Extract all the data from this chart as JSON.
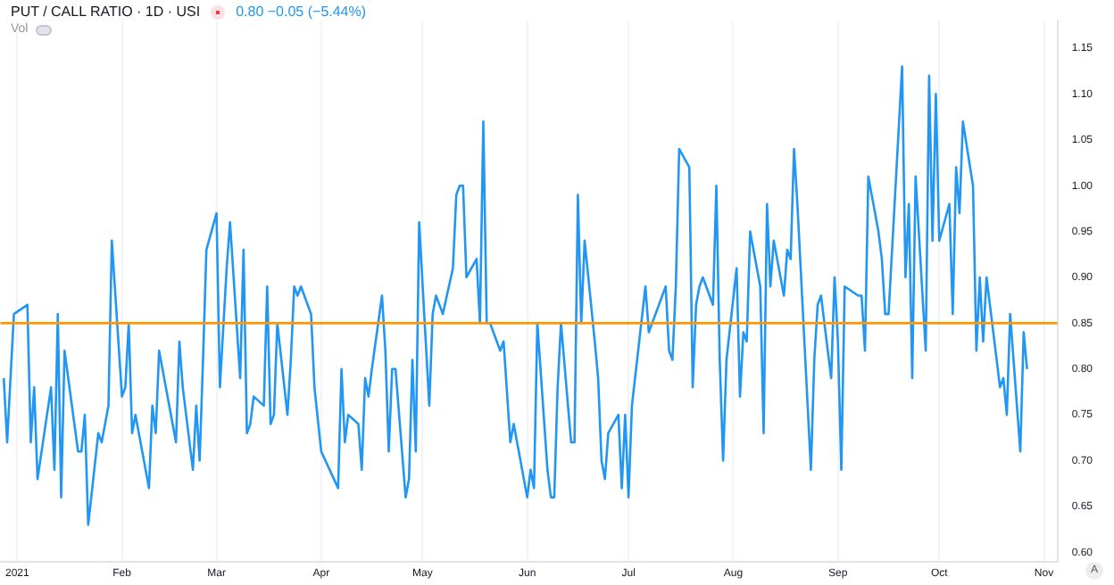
{
  "chart_data": {
    "type": "line",
    "title": "PUT / CALL RATIO · 1D · USI",
    "annotations": [
      "0.80  −0.05 (−5.44%)",
      "Vol",
      "A"
    ],
    "x": [
      "2020-12-28",
      "2020-12-29",
      "2020-12-30",
      "2020-12-31",
      "2021-01-04",
      "2021-01-05",
      "2021-01-06",
      "2021-01-07",
      "2021-01-11",
      "2021-01-12",
      "2021-01-13",
      "2021-01-14",
      "2021-01-15",
      "2021-01-19",
      "2021-01-20",
      "2021-01-21",
      "2021-01-22",
      "2021-01-25",
      "2021-01-26",
      "2021-01-28",
      "2021-01-29",
      "2021-02-01",
      "2021-02-02",
      "2021-02-03",
      "2021-02-04",
      "2021-02-05",
      "2021-02-09",
      "2021-02-10",
      "2021-02-11",
      "2021-02-12",
      "2021-02-17",
      "2021-02-18",
      "2021-02-19",
      "2021-02-22",
      "2021-02-23",
      "2021-02-24",
      "2021-02-25",
      "2021-02-26",
      "2021-03-01",
      "2021-03-02",
      "2021-03-04",
      "2021-03-05",
      "2021-03-08",
      "2021-03-09",
      "2021-03-10",
      "2021-03-11",
      "2021-03-12",
      "2021-03-15",
      "2021-03-16",
      "2021-03-17",
      "2021-03-18",
      "2021-03-19",
      "2021-03-22",
      "2021-03-23",
      "2021-03-24",
      "2021-03-25",
      "2021-03-26",
      "2021-03-29",
      "2021-03-30",
      "2021-04-01",
      "2021-04-06",
      "2021-04-07",
      "2021-04-08",
      "2021-04-09",
      "2021-04-12",
      "2021-04-13",
      "2021-04-14",
      "2021-04-15",
      "2021-04-16",
      "2021-04-19",
      "2021-04-20",
      "2021-04-21",
      "2021-04-22",
      "2021-04-23",
      "2021-04-26",
      "2021-04-27",
      "2021-04-28",
      "2021-04-29",
      "2021-04-30",
      "2021-05-03",
      "2021-05-04",
      "2021-05-05",
      "2021-05-07",
      "2021-05-10",
      "2021-05-11",
      "2021-05-12",
      "2021-05-13",
      "2021-05-14",
      "2021-05-17",
      "2021-05-18",
      "2021-05-19",
      "2021-05-20",
      "2021-05-21",
      "2021-05-24",
      "2021-05-25",
      "2021-05-27",
      "2021-05-28",
      "2021-06-01",
      "2021-06-02",
      "2021-06-03",
      "2021-06-04",
      "2021-06-07",
      "2021-06-08",
      "2021-06-09",
      "2021-06-10",
      "2021-06-11",
      "2021-06-14",
      "2021-06-15",
      "2021-06-16",
      "2021-06-17",
      "2021-06-18",
      "2021-06-21",
      "2021-06-22",
      "2021-06-23",
      "2021-06-24",
      "2021-06-25",
      "2021-06-28",
      "2021-06-29",
      "2021-06-30",
      "2021-07-01",
      "2021-07-02",
      "2021-07-06",
      "2021-07-07",
      "2021-07-12",
      "2021-07-13",
      "2021-07-14",
      "2021-07-15",
      "2021-07-16",
      "2021-07-19",
      "2021-07-20",
      "2021-07-21",
      "2021-07-22",
      "2021-07-23",
      "2021-07-26",
      "2021-07-27",
      "2021-07-28",
      "2021-07-29",
      "2021-07-30",
      "2021-08-02",
      "2021-08-03",
      "2021-08-04",
      "2021-08-05",
      "2021-08-06",
      "2021-08-09",
      "2021-08-10",
      "2021-08-11",
      "2021-08-12",
      "2021-08-13",
      "2021-08-16",
      "2021-08-17",
      "2021-08-18",
      "2021-08-19",
      "2021-08-20",
      "2021-08-24",
      "2021-08-25",
      "2021-08-26",
      "2021-08-27",
      "2021-08-30",
      "2021-08-31",
      "2021-09-01",
      "2021-09-02",
      "2021-09-03",
      "2021-09-07",
      "2021-09-08",
      "2021-09-09",
      "2021-09-10",
      "2021-09-13",
      "2021-09-14",
      "2021-09-15",
      "2021-09-16",
      "2021-09-20",
      "2021-09-21",
      "2021-09-22",
      "2021-09-23",
      "2021-09-24",
      "2021-09-27",
      "2021-09-28",
      "2021-09-29",
      "2021-09-30",
      "2021-10-01",
      "2021-10-04",
      "2021-10-05",
      "2021-10-06",
      "2021-10-07",
      "2021-10-08",
      "2021-10-11",
      "2021-10-12",
      "2021-10-13",
      "2021-10-14",
      "2021-10-15",
      "2021-10-19",
      "2021-10-20",
      "2021-10-21",
      "2021-10-22",
      "2021-10-25",
      "2021-10-26",
      "2021-10-27"
    ],
    "series": [
      {
        "color": "#2196f3",
        "values": [
          0.79,
          0.72,
          0.79,
          0.86,
          0.87,
          0.72,
          0.78,
          0.68,
          0.78,
          0.69,
          0.86,
          0.66,
          0.82,
          0.71,
          0.71,
          0.75,
          0.63,
          0.73,
          0.72,
          0.76,
          0.94,
          0.77,
          0.78,
          0.85,
          0.73,
          0.75,
          0.67,
          0.76,
          0.73,
          0.82,
          0.72,
          0.83,
          0.78,
          0.69,
          0.76,
          0.7,
          0.81,
          0.93,
          0.97,
          0.78,
          0.91,
          0.96,
          0.79,
          0.93,
          0.73,
          0.74,
          0.77,
          0.76,
          0.89,
          0.74,
          0.75,
          0.85,
          0.75,
          0.81,
          0.89,
          0.88,
          0.89,
          0.86,
          0.78,
          0.71,
          0.67,
          0.8,
          0.72,
          0.75,
          0.74,
          0.69,
          0.79,
          0.77,
          0.8,
          0.88,
          0.82,
          0.71,
          0.8,
          0.8,
          0.66,
          0.68,
          0.81,
          0.71,
          0.96,
          0.76,
          0.86,
          0.88,
          0.86,
          0.91,
          0.99,
          1.0,
          1.0,
          0.9,
          0.92,
          0.85,
          1.07,
          0.85,
          0.85,
          0.82,
          0.83,
          0.72,
          0.74,
          0.66,
          0.69,
          0.67,
          0.85,
          0.69,
          0.66,
          0.66,
          0.78,
          0.85,
          0.72,
          0.72,
          0.99,
          0.85,
          0.94,
          0.83,
          0.79,
          0.7,
          0.68,
          0.73,
          0.75,
          0.67,
          0.75,
          0.66,
          0.76,
          0.89,
          0.84,
          0.89,
          0.82,
          0.81,
          0.89,
          1.04,
          1.02,
          0.78,
          0.87,
          0.89,
          0.9,
          0.87,
          1.0,
          0.81,
          0.7,
          0.81,
          0.91,
          0.77,
          0.84,
          0.83,
          0.95,
          0.89,
          0.73,
          0.98,
          0.89,
          0.94,
          0.88,
          0.93,
          0.92,
          1.04,
          0.98,
          0.69,
          0.81,
          0.87,
          0.88,
          0.79,
          0.9,
          0.83,
          0.69,
          0.89,
          0.88,
          0.88,
          0.82,
          1.01,
          0.95,
          0.92,
          0.86,
          0.86,
          1.13,
          0.9,
          0.98,
          0.79,
          1.01,
          0.82,
          1.12,
          0.94,
          1.1,
          0.94,
          0.98,
          0.86,
          1.02,
          0.97,
          1.07,
          1.0,
          0.82,
          0.9,
          0.83,
          0.9,
          0.78,
          0.79,
          0.75,
          0.86,
          0.71,
          0.84,
          0.8
        ]
      }
    ],
    "xlim": [
      "2020-12-27",
      "2021-11-05"
    ],
    "xticks": [
      {
        "value": "2021-01-01",
        "label": "2021"
      },
      {
        "value": "2021-02-01",
        "label": "Feb"
      },
      {
        "value": "2021-03-01",
        "label": "Mar"
      },
      {
        "value": "2021-04-01",
        "label": "Apr"
      },
      {
        "value": "2021-05-01",
        "label": "May"
      },
      {
        "value": "2021-06-01",
        "label": "Jun"
      },
      {
        "value": "2021-07-01",
        "label": "Jul"
      },
      {
        "value": "2021-08-01",
        "label": "Aug"
      },
      {
        "value": "2021-09-01",
        "label": "Sep"
      },
      {
        "value": "2021-10-01",
        "label": "Oct"
      },
      {
        "value": "2021-11-01",
        "label": "Nov"
      }
    ],
    "ylim": [
      0.59,
      1.18
    ],
    "yticks": [
      {
        "value": 0.6,
        "label": "0.60"
      },
      {
        "value": 0.65,
        "label": "0.65"
      },
      {
        "value": 0.7,
        "label": "0.70"
      },
      {
        "value": 0.75,
        "label": "0.75"
      },
      {
        "value": 0.8,
        "label": "0.80"
      },
      {
        "value": 0.85,
        "label": "0.85"
      },
      {
        "value": 0.9,
        "label": "0.90"
      },
      {
        "value": 0.95,
        "label": "0.95"
      },
      {
        "value": 1.0,
        "label": "1.00"
      },
      {
        "value": 1.05,
        "label": "1.05"
      },
      {
        "value": 1.1,
        "label": "1.10"
      },
      {
        "value": 1.15,
        "label": "1.15"
      }
    ],
    "ref_lines": [
      {
        "axis": "y",
        "value": 0.85,
        "color": "#ff9800"
      }
    ],
    "grid": "x",
    "legend": false,
    "marker": "none"
  }
}
